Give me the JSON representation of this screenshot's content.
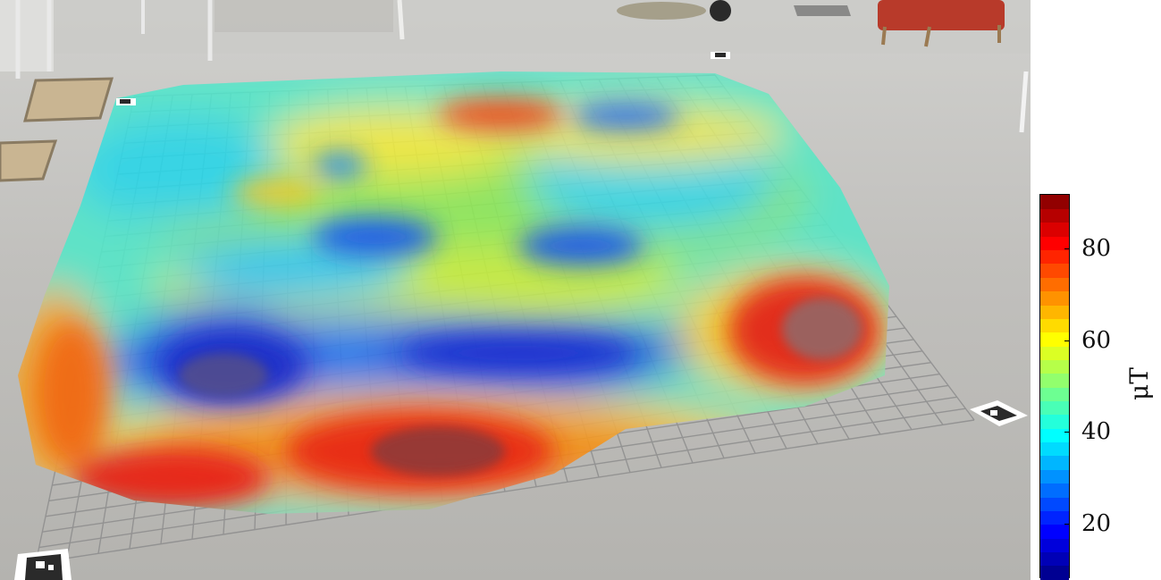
{
  "colorbar": {
    "unit_label": "μT",
    "min": 8,
    "max": 92,
    "ticks": [
      {
        "label": "20",
        "value": 20
      },
      {
        "label": "40",
        "value": 40
      },
      {
        "label": "60",
        "value": 60
      },
      {
        "label": "80",
        "value": 80
      }
    ],
    "colormap": "jet"
  },
  "scene": {
    "floor_color": "#bdbcb8",
    "grid_color": "#8d8d8d"
  }
}
